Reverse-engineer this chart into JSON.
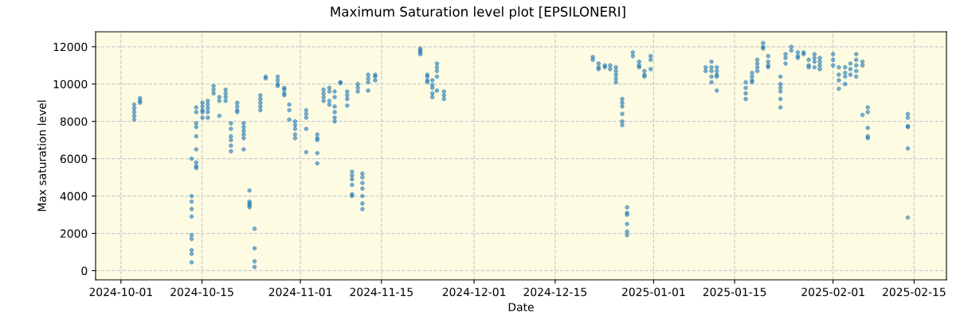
{
  "chart_data": {
    "type": "scatter",
    "title": "Maximum Saturation level plot [EPSILONERI]",
    "xlabel": "Date",
    "ylabel": "Max saturation level",
    "x": [
      "2024-10-03T07:00",
      "2024-10-03T07:00",
      "2024-10-03T07:00",
      "2024-10-03T07:00",
      "2024-10-03T07:00",
      "2024-10-04T07:00",
      "2024-10-04T07:00",
      "2024-10-04T07:00",
      "2024-10-13T05:00",
      "2024-10-13T05:00",
      "2024-10-13T05:00",
      "2024-10-13T05:00",
      "2024-10-13T05:00",
      "2024-10-13T05:00",
      "2024-10-13T05:00",
      "2024-10-13T05:00",
      "2024-10-13T05:00",
      "2024-10-13T05:00",
      "2024-10-14T00:00",
      "2024-10-14T00:00",
      "2024-10-14T00:00",
      "2024-10-14T00:00",
      "2024-10-14T00:00",
      "2024-10-14T00:00",
      "2024-10-14T00:00",
      "2024-10-14T00:00",
      "2024-10-14T00:00",
      "2024-10-15T02:00",
      "2024-10-15T02:00",
      "2024-10-15T02:00",
      "2024-10-15T02:00",
      "2024-10-15T02:00",
      "2024-10-16T00:00",
      "2024-10-16T00:00",
      "2024-10-16T00:00",
      "2024-10-16T00:00",
      "2024-10-16T00:00",
      "2024-10-17T00:00",
      "2024-10-17T00:00",
      "2024-10-17T00:00",
      "2024-10-18T00:00",
      "2024-10-18T00:00",
      "2024-10-18T00:00",
      "2024-10-19T02:00",
      "2024-10-19T02:00",
      "2024-10-19T02:00",
      "2024-10-19T02:00",
      "2024-10-20T00:00",
      "2024-10-20T00:00",
      "2024-10-20T00:00",
      "2024-10-20T00:00",
      "2024-10-20T00:00",
      "2024-10-20T00:00",
      "2024-10-21T02:00",
      "2024-10-21T02:00",
      "2024-10-21T02:00",
      "2024-10-21T02:00",
      "2024-10-22T05:00",
      "2024-10-22T05:00",
      "2024-10-22T05:00",
      "2024-10-22T05:00",
      "2024-10-22T05:00",
      "2024-10-22T05:00",
      "2024-10-23T05:00",
      "2024-10-23T05:00",
      "2024-10-23T05:00",
      "2024-10-23T05:00",
      "2024-10-23T05:00",
      "2024-10-24T02:00",
      "2024-10-24T02:00",
      "2024-10-24T02:00",
      "2024-10-24T02:00",
      "2024-10-25T02:00",
      "2024-10-25T02:00",
      "2024-10-25T02:00",
      "2024-10-25T02:00",
      "2024-10-25T02:00",
      "2024-10-26T00:00",
      "2024-10-26T00:00",
      "2024-10-28T02:00",
      "2024-10-28T02:00",
      "2024-10-28T02:00",
      "2024-10-28T02:00",
      "2024-10-29T05:00",
      "2024-10-29T05:00",
      "2024-10-29T05:00",
      "2024-10-29T05:00",
      "2024-10-30T02:00",
      "2024-10-30T02:00",
      "2024-10-30T02:00",
      "2024-10-31T02:00",
      "2024-10-31T02:00",
      "2024-10-31T02:00",
      "2024-10-31T02:00",
      "2024-10-31T02:00",
      "2024-11-02T00:00",
      "2024-11-02T00:00",
      "2024-11-02T00:00",
      "2024-11-02T00:00",
      "2024-11-02T00:00",
      "2024-11-03T22:00",
      "2024-11-03T22:00",
      "2024-11-03T22:00",
      "2024-11-03T22:00",
      "2024-11-03T22:00",
      "2024-11-05T00:00",
      "2024-11-05T00:00",
      "2024-11-05T00:00",
      "2024-11-05T00:00",
      "2024-11-06T00:00",
      "2024-11-06T00:00",
      "2024-11-06T00:00",
      "2024-11-06T00:00",
      "2024-11-06T22:00",
      "2024-11-06T22:00",
      "2024-11-06T22:00",
      "2024-11-06T22:00",
      "2024-11-06T22:00",
      "2024-11-06T22:00",
      "2024-11-07T22:00",
      "2024-11-07T22:00",
      "2024-11-09T02:00",
      "2024-11-09T02:00",
      "2024-11-09T02:00",
      "2024-11-09T02:00",
      "2024-11-09T22:00",
      "2024-11-09T22:00",
      "2024-11-09T22:00",
      "2024-11-09T22:00",
      "2024-11-09T22:00",
      "2024-11-09T22:00",
      "2024-11-10T22:00",
      "2024-11-10T22:00",
      "2024-11-10T22:00",
      "2024-11-11T17:00",
      "2024-11-11T17:00",
      "2024-11-11T17:00",
      "2024-11-11T17:00",
      "2024-11-11T17:00",
      "2024-11-11T17:00",
      "2024-11-11T17:00",
      "2024-11-12T17:00",
      "2024-11-12T17:00",
      "2024-11-12T17:00",
      "2024-11-12T17:00",
      "2024-11-13T22:00",
      "2024-11-13T22:00",
      "2024-11-13T22:00",
      "2024-11-21T17:00",
      "2024-11-21T17:00",
      "2024-11-21T17:00",
      "2024-11-21T17:00",
      "2024-11-22T22:00",
      "2024-11-22T22:00",
      "2024-11-22T22:00",
      "2024-11-22T22:00",
      "2024-11-23T19:00",
      "2024-11-23T19:00",
      "2024-11-23T19:00",
      "2024-11-23T19:00",
      "2024-11-23T19:00",
      "2024-11-24T14:00",
      "2024-11-24T14:00",
      "2024-11-24T14:00",
      "2024-11-24T14:00",
      "2024-11-24T14:00",
      "2024-11-25T19:00",
      "2024-11-25T19:00",
      "2024-11-25T19:00",
      "2024-12-21T12:00",
      "2024-12-21T12:00",
      "2024-12-22T12:00",
      "2024-12-22T12:00",
      "2024-12-22T12:00",
      "2024-12-23T14:00",
      "2024-12-23T14:00",
      "2024-12-24T12:00",
      "2024-12-24T12:00",
      "2024-12-25T12:00",
      "2024-12-25T12:00",
      "2024-12-25T12:00",
      "2024-12-25T12:00",
      "2024-12-25T12:00",
      "2024-12-26T14:00",
      "2024-12-26T14:00",
      "2024-12-26T14:00",
      "2024-12-26T14:00",
      "2024-12-26T14:00",
      "2024-12-26T14:00",
      "2024-12-27T10:00",
      "2024-12-27T10:00",
      "2024-12-27T10:00",
      "2024-12-27T10:00",
      "2024-12-27T10:00",
      "2024-12-27T10:00",
      "2024-12-28T10:00",
      "2024-12-28T10:00",
      "2024-12-29T12:00",
      "2024-12-29T12:00",
      "2024-12-29T12:00",
      "2024-12-30T10:00",
      "2024-12-30T10:00",
      "2024-12-30T10:00",
      "2024-12-31T12:00",
      "2024-12-31T12:00",
      "2024-12-31T12:00",
      "2025-01-10T00:00",
      "2025-01-10T00:00",
      "2025-01-11T00:00",
      "2025-01-11T00:00",
      "2025-01-11T00:00",
      "2025-01-11T00:00",
      "2025-01-11T00:00",
      "2025-01-11T22:00",
      "2025-01-11T22:00",
      "2025-01-11T22:00",
      "2025-01-11T22:00",
      "2025-01-11T22:00",
      "2025-01-16T22:00",
      "2025-01-16T22:00",
      "2025-01-16T22:00",
      "2025-01-16T22:00",
      "2025-01-18T00:00",
      "2025-01-18T00:00",
      "2025-01-18T00:00",
      "2025-01-18T00:00",
      "2025-01-18T22:00",
      "2025-01-18T22:00",
      "2025-01-18T22:00",
      "2025-01-18T22:00",
      "2025-01-19T22:00",
      "2025-01-19T22:00",
      "2025-01-19T22:00",
      "2025-01-20T19:00",
      "2025-01-20T19:00",
      "2025-01-20T19:00",
      "2025-01-20T19:00",
      "2025-01-22T22:00",
      "2025-01-22T22:00",
      "2025-01-22T22:00",
      "2025-01-22T22:00",
      "2025-01-22T22:00",
      "2025-01-22T22:00",
      "2025-01-23T19:00",
      "2025-01-23T19:00",
      "2025-01-23T19:00",
      "2025-01-24T19:00",
      "2025-01-24T19:00",
      "2025-01-25T22:00",
      "2025-01-25T22:00",
      "2025-01-25T22:00",
      "2025-01-26T22:00",
      "2025-01-26T22:00",
      "2025-01-27T19:00",
      "2025-01-27T19:00",
      "2025-01-27T19:00",
      "2025-01-28T19:00",
      "2025-01-28T19:00",
      "2025-01-28T19:00",
      "2025-01-28T19:00",
      "2025-01-29T17:00",
      "2025-01-29T17:00",
      "2025-01-29T17:00",
      "2025-01-29T17:00",
      "2025-02-01T00:00",
      "2025-02-01T00:00",
      "2025-02-01T00:00",
      "2025-02-02T00:00",
      "2025-02-02T00:00",
      "2025-02-02T00:00",
      "2025-02-02T00:00",
      "2025-02-03T02:00",
      "2025-02-03T02:00",
      "2025-02-03T02:00",
      "2025-02-03T02:00",
      "2025-02-04T00:00",
      "2025-02-04T00:00",
      "2025-02-04T00:00",
      "2025-02-05T00:00",
      "2025-02-05T00:00",
      "2025-02-05T00:00",
      "2025-02-05T00:00",
      "2025-02-05T00:00",
      "2025-02-06T02:00",
      "2025-02-06T02:00",
      "2025-02-06T02:00",
      "2025-02-07T00:00",
      "2025-02-07T00:00",
      "2025-02-07T00:00",
      "2025-02-07T00:00",
      "2025-02-07T00:00",
      "2025-02-13T22:00",
      "2025-02-13T22:00",
      "2025-02-13T22:00",
      "2025-02-13T22:00",
      "2025-02-13T22:00",
      "2025-02-13T22:00"
    ],
    "values": [
      8900,
      8700,
      8500,
      8300,
      8100,
      9250,
      9100,
      9000,
      6000,
      4000,
      3700,
      3300,
      2900,
      1900,
      1700,
      1100,
      900,
      450,
      8750,
      8500,
      7900,
      7700,
      7200,
      6500,
      5800,
      5600,
      5500,
      9000,
      8800,
      8600,
      8500,
      8200,
      9100,
      8900,
      8700,
      8500,
      8200,
      9900,
      9700,
      9500,
      9300,
      9100,
      8300,
      9700,
      9500,
      9300,
      9100,
      7900,
      7600,
      7200,
      7000,
      6700,
      6400,
      9000,
      8800,
      8600,
      8500,
      7900,
      7700,
      7500,
      7300,
      7100,
      6500,
      4300,
      3700,
      3600,
      3500,
      3400,
      2250,
      1200,
      500,
      200,
      9400,
      9200,
      9000,
      8800,
      8600,
      10400,
      10300,
      10400,
      10200,
      10000,
      9900,
      9800,
      9700,
      9500,
      9400,
      8900,
      8600,
      8100,
      8000,
      7800,
      7600,
      7300,
      7100,
      8600,
      8400,
      8200,
      7600,
      6350,
      7300,
      7100,
      7000,
      6300,
      5750,
      9700,
      9500,
      9300,
      9100,
      9800,
      9600,
      9100,
      8900,
      9600,
      9300,
      8800,
      8500,
      8200,
      8000,
      10100,
      10050,
      9600,
      9400,
      9200,
      8850,
      5300,
      5100,
      4900,
      4600,
      4100,
      4000,
      10000,
      9800,
      9600,
      5200,
      5000,
      4700,
      4400,
      4000,
      3600,
      3300,
      10500,
      10300,
      10100,
      9650,
      10500,
      10400,
      10200,
      11900,
      11800,
      11700,
      11600,
      10500,
      10400,
      10200,
      10100,
      10200,
      9950,
      9800,
      9500,
      9300,
      11100,
      10900,
      10700,
      10400,
      9650,
      9600,
      9400,
      9200,
      11450,
      11300,
      11100,
      10900,
      10800,
      11000,
      10900,
      11000,
      10800,
      10900,
      10700,
      10500,
      10300,
      10100,
      9200,
      9000,
      8800,
      8400,
      8000,
      7800,
      3400,
      3100,
      3000,
      2500,
      2100,
      1900,
      11700,
      11500,
      11200,
      11000,
      10900,
      10700,
      10500,
      10400,
      11500,
      11300,
      10800,
      10900,
      10700,
      11200,
      10900,
      10700,
      10400,
      10100,
      10900,
      10700,
      10500,
      10400,
      9650,
      10100,
      9800,
      9500,
      9200,
      10600,
      10400,
      10200,
      10100,
      11300,
      11100,
      10900,
      10700,
      12200,
      12000,
      11900,
      11500,
      11200,
      11000,
      10900,
      10400,
      10000,
      9800,
      9600,
      9200,
      8750,
      11600,
      11400,
      11100,
      12000,
      11800,
      11700,
      11500,
      11400,
      11700,
      11600,
      11300,
      11000,
      10900,
      11600,
      11400,
      11200,
      10900,
      11400,
      11200,
      11000,
      10800,
      11600,
      11300,
      11000,
      10900,
      10500,
      10200,
      9750,
      10900,
      10600,
      10400,
      10000,
      11100,
      10800,
      10500,
      11600,
      11300,
      11000,
      10700,
      10400,
      11200,
      11000,
      8350,
      8750,
      8500,
      7650,
      7200,
      7100,
      8400,
      8200,
      7750,
      7700,
      6550,
      2850
    ],
    "color": "#1f77b4",
    "marker": "circle",
    "xlim": [
      "2024-09-26T15:00",
      "2025-02-20T14:00"
    ],
    "xticks": [
      "2024-10-01",
      "2024-10-15",
      "2024-11-01",
      "2024-11-15",
      "2024-12-01",
      "2024-12-15",
      "2025-01-01",
      "2025-01-15",
      "2025-02-01",
      "2025-02-15"
    ],
    "ylim": [
      -490,
      12800
    ],
    "yticks": [
      0,
      2000,
      4000,
      6000,
      8000,
      10000,
      12000
    ],
    "grid": true
  }
}
